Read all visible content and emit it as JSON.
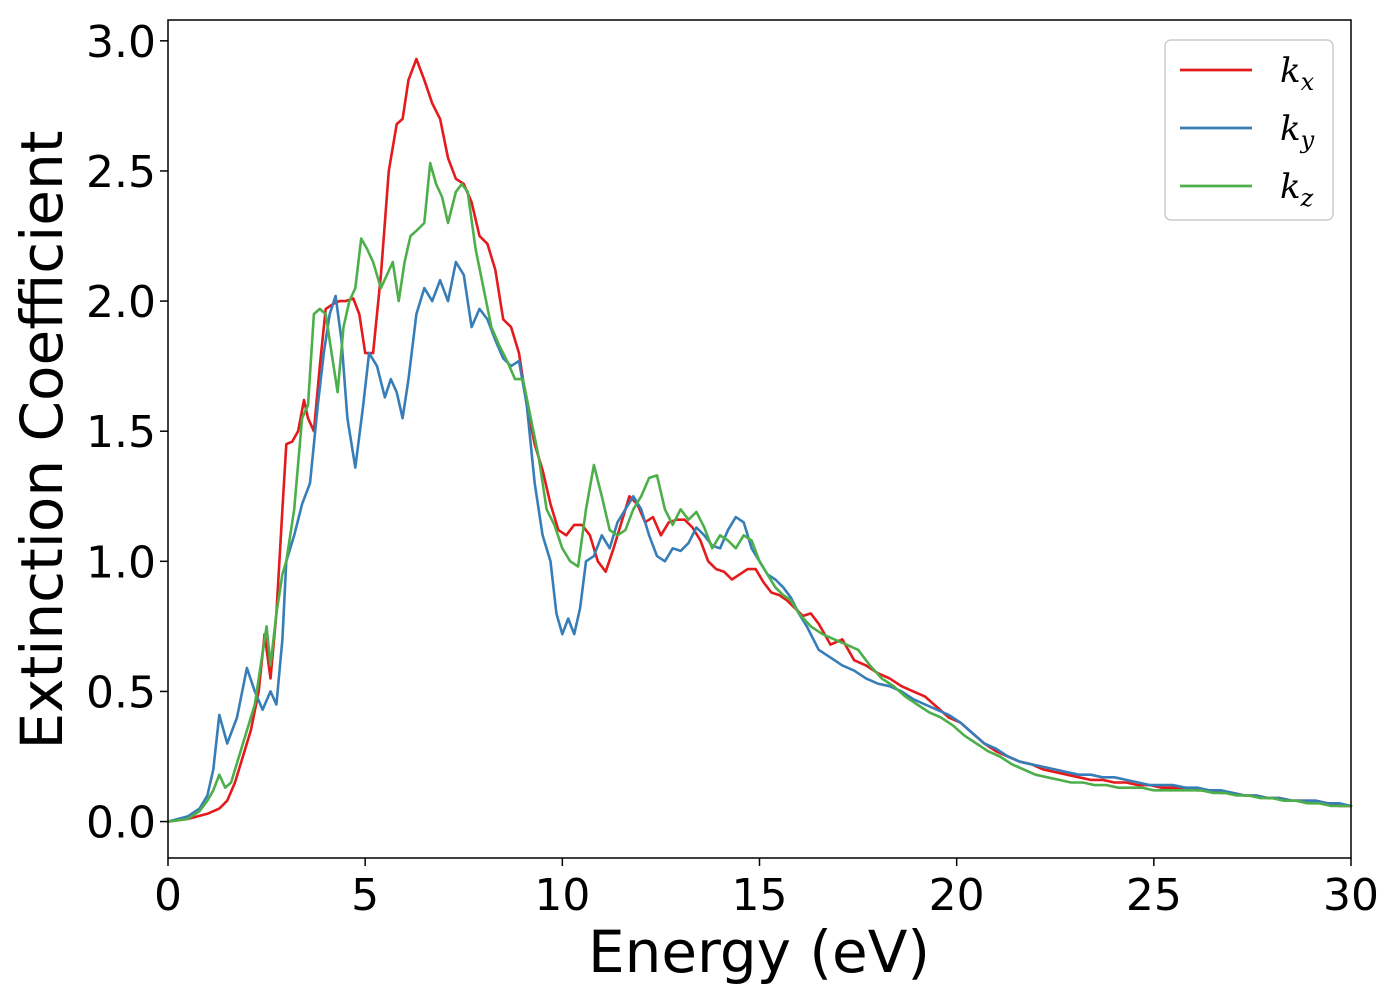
{
  "chart_data": {
    "type": "line",
    "title": "",
    "xlabel": "Energy (eV)",
    "ylabel": "Extinction Coefficient",
    "xlim": [
      0,
      30
    ],
    "ylim": [
      -0.14,
      3.08
    ],
    "xticks": [
      0,
      5,
      10,
      15,
      20,
      25,
      30
    ],
    "xtick_labels": [
      "0",
      "5",
      "10",
      "15",
      "20",
      "25",
      "30"
    ],
    "yticks": [
      0.0,
      0.5,
      1.0,
      1.5,
      2.0,
      2.5,
      3.0
    ],
    "ytick_labels": [
      "0.0",
      "0.5",
      "1.0",
      "1.5",
      "2.0",
      "2.5",
      "3.0"
    ],
    "grid": false,
    "legend_position": "top-right",
    "series": [
      {
        "name": "k",
        "subscript": "x",
        "color": "#e41a1c",
        "x": [
          0,
          0.5,
          1.0,
          1.3,
          1.5,
          1.7,
          1.9,
          2.1,
          2.3,
          2.45,
          2.6,
          2.75,
          2.9,
          3.0,
          3.15,
          3.3,
          3.45,
          3.55,
          3.7,
          3.85,
          4.0,
          4.2,
          4.35,
          4.5,
          4.7,
          4.85,
          5.0,
          5.2,
          5.4,
          5.6,
          5.8,
          5.95,
          6.1,
          6.3,
          6.5,
          6.7,
          6.9,
          7.1,
          7.3,
          7.5,
          7.7,
          7.9,
          8.1,
          8.3,
          8.5,
          8.7,
          8.9,
          9.1,
          9.3,
          9.5,
          9.7,
          9.9,
          10.1,
          10.3,
          10.5,
          10.7,
          10.9,
          11.1,
          11.3,
          11.5,
          11.7,
          11.9,
          12.1,
          12.3,
          12.5,
          12.7,
          12.9,
          13.1,
          13.3,
          13.5,
          13.7,
          13.9,
          14.1,
          14.3,
          14.5,
          14.7,
          14.9,
          15.1,
          15.3,
          15.5,
          15.7,
          15.9,
          16.1,
          16.3,
          16.5,
          16.8,
          17.1,
          17.4,
          17.7,
          18.0,
          18.3,
          18.6,
          18.9,
          19.2,
          19.5,
          19.8,
          20.1,
          20.4,
          20.7,
          21.0,
          21.3,
          21.6,
          21.9,
          22.2,
          22.5,
          22.8,
          23.1,
          23.4,
          23.7,
          24.0,
          24.3,
          24.6,
          24.9,
          25.2,
          25.5,
          25.8,
          26.1,
          26.4,
          26.7,
          27.0,
          27.3,
          27.6,
          27.9,
          28.2,
          28.5,
          28.8,
          29.1,
          29.4,
          29.7,
          30.0
        ],
        "y": [
          0.0,
          0.01,
          0.03,
          0.05,
          0.08,
          0.15,
          0.25,
          0.35,
          0.5,
          0.72,
          0.55,
          0.8,
          1.2,
          1.45,
          1.46,
          1.5,
          1.62,
          1.55,
          1.5,
          1.75,
          1.97,
          1.99,
          2.0,
          2.0,
          2.01,
          1.95,
          1.8,
          1.8,
          2.1,
          2.5,
          2.68,
          2.7,
          2.85,
          2.93,
          2.85,
          2.76,
          2.7,
          2.55,
          2.47,
          2.45,
          2.38,
          2.25,
          2.22,
          2.12,
          1.93,
          1.9,
          1.8,
          1.6,
          1.45,
          1.35,
          1.22,
          1.12,
          1.1,
          1.14,
          1.14,
          1.1,
          1.0,
          0.96,
          1.05,
          1.15,
          1.25,
          1.22,
          1.15,
          1.17,
          1.1,
          1.15,
          1.16,
          1.16,
          1.13,
          1.08,
          1.0,
          0.97,
          0.96,
          0.93,
          0.95,
          0.97,
          0.97,
          0.92,
          0.88,
          0.87,
          0.85,
          0.82,
          0.79,
          0.8,
          0.76,
          0.68,
          0.7,
          0.62,
          0.6,
          0.57,
          0.55,
          0.52,
          0.5,
          0.48,
          0.44,
          0.4,
          0.38,
          0.34,
          0.3,
          0.27,
          0.25,
          0.23,
          0.22,
          0.2,
          0.19,
          0.18,
          0.17,
          0.16,
          0.16,
          0.15,
          0.15,
          0.14,
          0.14,
          0.13,
          0.13,
          0.13,
          0.12,
          0.12,
          0.11,
          0.11,
          0.1,
          0.1,
          0.09,
          0.09,
          0.08,
          0.08,
          0.08,
          0.07,
          0.06,
          0.06
        ]
      },
      {
        "name": "k",
        "subscript": "y",
        "color": "#377eb8",
        "x": [
          0,
          0.5,
          0.8,
          1.0,
          1.15,
          1.3,
          1.5,
          1.75,
          2.0,
          2.2,
          2.4,
          2.6,
          2.75,
          2.9,
          3.0,
          3.2,
          3.4,
          3.6,
          3.8,
          3.95,
          4.1,
          4.25,
          4.4,
          4.55,
          4.75,
          4.95,
          5.1,
          5.3,
          5.5,
          5.65,
          5.8,
          5.95,
          6.1,
          6.3,
          6.5,
          6.7,
          6.9,
          7.1,
          7.3,
          7.5,
          7.7,
          7.9,
          8.1,
          8.3,
          8.5,
          8.7,
          8.9,
          9.1,
          9.3,
          9.5,
          9.7,
          9.85,
          10.0,
          10.15,
          10.3,
          10.45,
          10.6,
          10.8,
          11.0,
          11.2,
          11.4,
          11.6,
          11.8,
          12.0,
          12.2,
          12.4,
          12.6,
          12.8,
          13.0,
          13.2,
          13.4,
          13.6,
          13.8,
          14.0,
          14.2,
          14.4,
          14.6,
          14.8,
          15.0,
          15.2,
          15.4,
          15.6,
          15.8,
          16.0,
          16.2,
          16.5,
          16.8,
          17.1,
          17.4,
          17.7,
          18.0,
          18.3,
          18.6,
          18.9,
          19.2,
          19.5,
          19.8,
          20.1,
          20.4,
          20.7,
          21.0,
          21.3,
          21.6,
          21.9,
          22.2,
          22.5,
          22.8,
          23.1,
          23.4,
          23.7,
          24.0,
          24.3,
          24.6,
          24.9,
          25.2,
          25.5,
          25.8,
          26.1,
          26.4,
          26.7,
          27.0,
          27.3,
          27.6,
          27.9,
          28.2,
          28.5,
          28.8,
          29.1,
          29.4,
          29.7,
          30.0
        ],
        "y": [
          0.0,
          0.02,
          0.05,
          0.1,
          0.2,
          0.41,
          0.3,
          0.4,
          0.59,
          0.5,
          0.43,
          0.5,
          0.45,
          0.7,
          1.0,
          1.1,
          1.22,
          1.3,
          1.6,
          1.8,
          1.95,
          2.02,
          1.85,
          1.55,
          1.36,
          1.6,
          1.8,
          1.75,
          1.63,
          1.7,
          1.65,
          1.55,
          1.7,
          1.95,
          2.05,
          2.0,
          2.08,
          2.0,
          2.15,
          2.1,
          1.9,
          1.97,
          1.93,
          1.85,
          1.78,
          1.75,
          1.77,
          1.6,
          1.3,
          1.1,
          1.0,
          0.8,
          0.72,
          0.78,
          0.72,
          0.82,
          1.0,
          1.02,
          1.1,
          1.05,
          1.15,
          1.2,
          1.25,
          1.2,
          1.1,
          1.02,
          1.0,
          1.05,
          1.04,
          1.07,
          1.13,
          1.1,
          1.06,
          1.05,
          1.12,
          1.17,
          1.15,
          1.05,
          1.0,
          0.95,
          0.93,
          0.9,
          0.86,
          0.8,
          0.75,
          0.66,
          0.63,
          0.6,
          0.58,
          0.55,
          0.53,
          0.52,
          0.5,
          0.47,
          0.45,
          0.43,
          0.41,
          0.38,
          0.34,
          0.3,
          0.28,
          0.25,
          0.23,
          0.22,
          0.21,
          0.2,
          0.19,
          0.18,
          0.18,
          0.17,
          0.17,
          0.16,
          0.15,
          0.14,
          0.14,
          0.14,
          0.13,
          0.13,
          0.12,
          0.12,
          0.11,
          0.1,
          0.1,
          0.09,
          0.09,
          0.08,
          0.08,
          0.08,
          0.07,
          0.07,
          0.06
        ]
      },
      {
        "name": "k",
        "subscript": "z",
        "color": "#4daf4a",
        "x": [
          0,
          0.5,
          0.8,
          1.0,
          1.15,
          1.3,
          1.45,
          1.6,
          1.8,
          2.0,
          2.2,
          2.35,
          2.5,
          2.6,
          2.75,
          2.9,
          3.0,
          3.2,
          3.4,
          3.55,
          3.7,
          3.85,
          4.0,
          4.15,
          4.3,
          4.45,
          4.6,
          4.75,
          4.9,
          5.05,
          5.2,
          5.4,
          5.55,
          5.7,
          5.85,
          6.0,
          6.15,
          6.3,
          6.5,
          6.65,
          6.8,
          6.95,
          7.1,
          7.3,
          7.45,
          7.6,
          7.8,
          8.0,
          8.2,
          8.4,
          8.6,
          8.8,
          9.0,
          9.2,
          9.4,
          9.6,
          9.8,
          10.0,
          10.2,
          10.4,
          10.6,
          10.8,
          11.0,
          11.2,
          11.4,
          11.6,
          11.8,
          12.0,
          12.2,
          12.4,
          12.6,
          12.8,
          13.0,
          13.2,
          13.4,
          13.6,
          13.8,
          14.0,
          14.2,
          14.4,
          14.6,
          14.8,
          15.0,
          15.2,
          15.4,
          15.6,
          15.8,
          16.0,
          16.3,
          16.6,
          16.9,
          17.2,
          17.5,
          17.8,
          18.1,
          18.4,
          18.7,
          19.0,
          19.3,
          19.6,
          19.9,
          20.2,
          20.5,
          20.8,
          21.1,
          21.4,
          21.7,
          22.0,
          22.3,
          22.6,
          22.9,
          23.2,
          23.5,
          23.8,
          24.1,
          24.4,
          24.7,
          25.0,
          25.3,
          25.6,
          25.9,
          26.2,
          26.5,
          26.8,
          27.1,
          27.4,
          27.7,
          28.0,
          28.3,
          28.6,
          28.9,
          29.2,
          29.5,
          29.8,
          30.0
        ],
        "y": [
          0.0,
          0.01,
          0.04,
          0.08,
          0.12,
          0.18,
          0.13,
          0.15,
          0.25,
          0.35,
          0.45,
          0.6,
          0.75,
          0.6,
          0.8,
          0.95,
          1.0,
          1.2,
          1.55,
          1.6,
          1.95,
          1.97,
          1.95,
          1.8,
          1.65,
          1.9,
          2.0,
          2.05,
          2.24,
          2.2,
          2.15,
          2.05,
          2.1,
          2.15,
          2.0,
          2.15,
          2.25,
          2.27,
          2.3,
          2.53,
          2.45,
          2.4,
          2.3,
          2.42,
          2.45,
          2.42,
          2.2,
          2.05,
          1.9,
          1.83,
          1.77,
          1.7,
          1.7,
          1.55,
          1.4,
          1.2,
          1.14,
          1.05,
          1.0,
          0.98,
          1.2,
          1.37,
          1.25,
          1.12,
          1.1,
          1.12,
          1.2,
          1.25,
          1.32,
          1.33,
          1.2,
          1.14,
          1.2,
          1.16,
          1.19,
          1.13,
          1.05,
          1.1,
          1.08,
          1.05,
          1.1,
          1.08,
          1.0,
          0.95,
          0.9,
          0.87,
          0.85,
          0.8,
          0.75,
          0.72,
          0.7,
          0.68,
          0.66,
          0.6,
          0.55,
          0.52,
          0.48,
          0.45,
          0.42,
          0.4,
          0.37,
          0.33,
          0.3,
          0.27,
          0.25,
          0.22,
          0.2,
          0.18,
          0.17,
          0.16,
          0.15,
          0.15,
          0.14,
          0.14,
          0.13,
          0.13,
          0.13,
          0.12,
          0.12,
          0.12,
          0.12,
          0.12,
          0.11,
          0.11,
          0.1,
          0.1,
          0.09,
          0.09,
          0.08,
          0.08,
          0.07,
          0.07,
          0.06,
          0.06,
          0.06
        ]
      }
    ]
  }
}
